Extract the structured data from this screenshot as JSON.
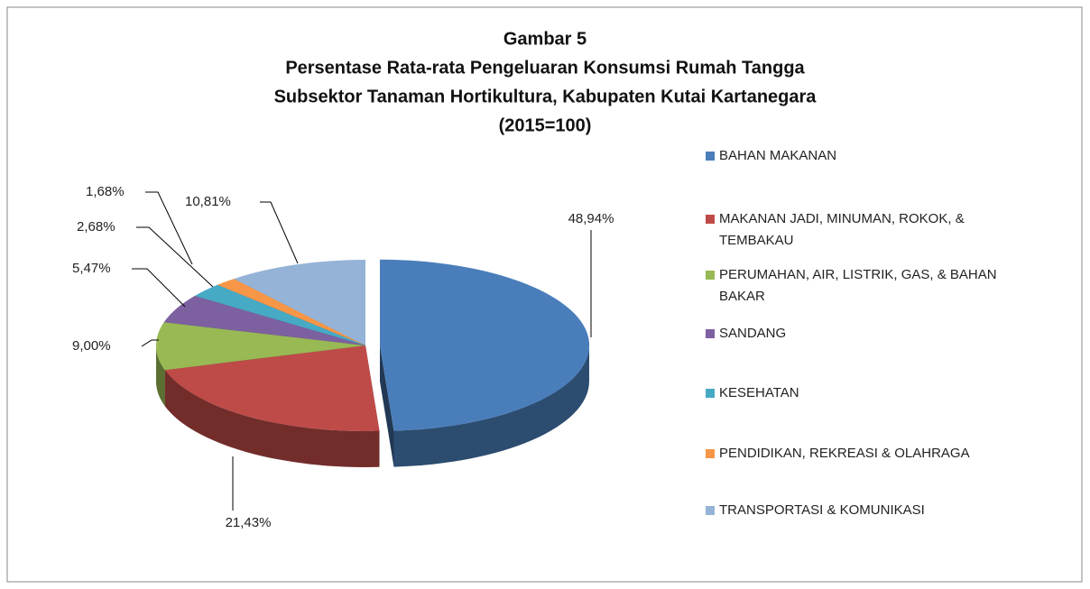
{
  "chart_data": {
    "type": "pie",
    "title": [
      "Gambar 5",
      "Persentase Rata-rata Pengeluaran Konsumsi Rumah Tangga",
      "Subsektor Tanaman Hortikultura, Kabupaten Kutai Kartanegara",
      "(2015=100)"
    ],
    "categories": [
      "BAHAN MAKANAN",
      "MAKANAN JADI, MINUMAN, ROKOK, & TEMBAKAU",
      "PERUMAHAN, AIR, LISTRIK, GAS, & BAHAN BAKAR",
      "SANDANG",
      "KESEHATAN",
      "PENDIDIKAN, REKREASI & OLAHRAGA",
      "TRANSPORTASI & KOMUNIKASI"
    ],
    "values": [
      48.94,
      21.43,
      9.0,
      5.47,
      2.68,
      1.68,
      10.81
    ],
    "value_labels": [
      "48,94%",
      "21,43%",
      "9,00%",
      "5,47%",
      "2,68%",
      "1,68%",
      "10,81%"
    ],
    "colors": [
      "#4a7ebb",
      "#be4b48",
      "#98b954",
      "#7d60a0",
      "#46aac5",
      "#f79646",
      "#95b3d7"
    ],
    "exploded": [
      0
    ],
    "legend": "right"
  }
}
